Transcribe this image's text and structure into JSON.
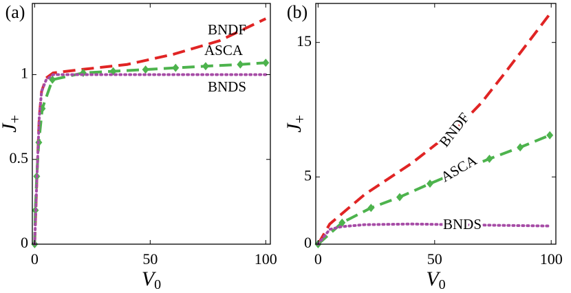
{
  "chart_data": [
    {
      "type": "line",
      "title": "(a)",
      "xlabel": "V",
      "xlabel_sub": "0",
      "ylabel": "J",
      "ylabel_sub": "+",
      "xlim": [
        -1,
        102
      ],
      "ylim": [
        0,
        1.42
      ],
      "xticks": [
        0,
        50,
        100
      ],
      "yticks": [
        0,
        0.5,
        1
      ],
      "annotations": [
        "BNDF",
        "ASCA",
        "BNDS"
      ],
      "series": [
        {
          "name": "BNDF",
          "color": "#e02424",
          "linestyle": "dashed",
          "x": [
            0,
            1,
            2,
            3,
            5,
            8,
            20,
            40,
            60,
            80,
            100
          ],
          "values": [
            0,
            0.4,
            0.75,
            0.9,
            0.98,
            1.01,
            1.03,
            1.06,
            1.12,
            1.2,
            1.33
          ]
        },
        {
          "name": "ASCA",
          "color": "#4db34d",
          "linestyle": "dashed",
          "marker": "diamond",
          "x": [
            0,
            0.3,
            0.9,
            1.8,
            3.3,
            7.7,
            21,
            34,
            48,
            61,
            74,
            89,
            100
          ],
          "values": [
            0,
            0.2,
            0.4,
            0.6,
            0.8,
            0.97,
            1.01,
            1.02,
            1.03,
            1.04,
            1.05,
            1.06,
            1.07
          ]
        },
        {
          "name": "BNDS",
          "color": "#a64ca6",
          "linestyle": "dotted",
          "x": [
            0,
            1,
            2,
            3,
            5,
            8,
            20,
            100
          ],
          "values": [
            0,
            0.4,
            0.75,
            0.9,
            0.97,
            1.0,
            1.0,
            1.0
          ]
        }
      ]
    },
    {
      "type": "line",
      "title": "(b)",
      "xlabel": "V",
      "xlabel_sub": "0",
      "ylabel": "J",
      "ylabel_sub": "+",
      "xlim": [
        -1,
        102
      ],
      "ylim": [
        0,
        17.9
      ],
      "xticks": [
        0,
        50,
        100
      ],
      "yticks": [
        0,
        5,
        15
      ],
      "annotations": [
        "BNDF",
        "ASCA",
        "BNDS"
      ],
      "series": [
        {
          "name": "BNDF",
          "color": "#e02424",
          "linestyle": "dashed",
          "x": [
            0,
            5,
            20,
            40,
            60,
            70,
            80,
            100
          ],
          "values": [
            0,
            1.5,
            3.7,
            6.0,
            8.7,
            10.5,
            12.7,
            17.25
          ]
        },
        {
          "name": "ASCA",
          "color": "#4db34d",
          "linestyle": "dashed",
          "marker": "diamond",
          "x": [
            0,
            10.3,
            22.7,
            35,
            48,
            73.5,
            86.7,
            99.4
          ],
          "values": [
            0,
            1.6,
            2.7,
            3.5,
            4.5,
            6.35,
            7.2,
            8.1
          ]
        },
        {
          "name": "BNDS",
          "color": "#a64ca6",
          "linestyle": "dotted",
          "x": [
            0,
            5,
            10,
            20,
            40,
            70,
            100
          ],
          "values": [
            0,
            1.1,
            1.3,
            1.45,
            1.5,
            1.42,
            1.35
          ]
        }
      ]
    }
  ]
}
